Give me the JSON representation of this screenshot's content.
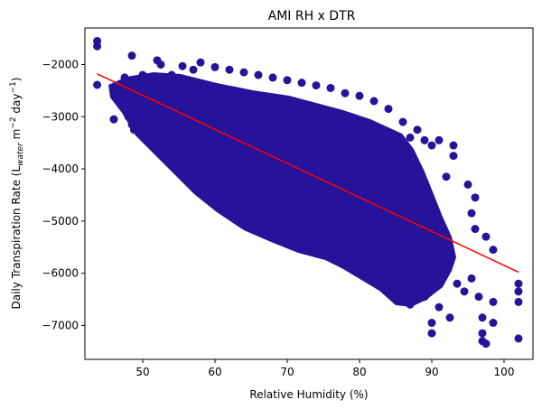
{
  "chart_data": {
    "type": "scatter",
    "title": "AMI RH x DTR",
    "xlabel": "Relative Humidity (%)",
    "ylabel_parts": {
      "pre": "Daily Transpiration Rate (L",
      "sub": "water",
      "mid": " m",
      "sup1": "−2",
      "mid2": " day",
      "sup2": "−1",
      "post": ")"
    },
    "xlim": [
      42,
      104
    ],
    "ylim": [
      -7650,
      -1300
    ],
    "x_ticks": [
      50,
      60,
      70,
      80,
      90,
      100
    ],
    "x_tick_labels": [
      "50",
      "60",
      "70",
      "80",
      "90",
      "100"
    ],
    "y_ticks": [
      -7000,
      -6000,
      -5000,
      -4000,
      -3000,
      -2000
    ],
    "y_tick_labels": [
      "−7000",
      "−6000",
      "−5000",
      "−4000",
      "−3000",
      "−2000"
    ],
    "grid": false,
    "series": [
      {
        "kind": "scatter",
        "color": "#26139a",
        "points": [
          [
            43.7,
            -1550
          ],
          [
            43.7,
            -1650
          ],
          [
            43.7,
            -2390
          ],
          [
            46.0,
            -3050
          ],
          [
            47.5,
            -2250
          ],
          [
            48.5,
            -1830
          ],
          [
            48.0,
            -3000
          ],
          [
            48.5,
            -3150
          ],
          [
            48.8,
            -3250
          ],
          [
            50.0,
            -2200
          ],
          [
            50.5,
            -2350
          ],
          [
            52.0,
            -1920
          ],
          [
            52.5,
            -2000
          ],
          [
            55.5,
            -2030
          ],
          [
            58.0,
            -1960
          ],
          [
            56.0,
            -3900
          ],
          [
            57.0,
            -4100
          ],
          [
            58.0,
            -4300
          ],
          [
            61.0,
            -4600
          ],
          [
            62.0,
            -4450
          ],
          [
            64.0,
            -4700
          ],
          [
            66.0,
            -4900
          ],
          [
            68.0,
            -5000
          ],
          [
            70.0,
            -5250
          ],
          [
            72.0,
            -5400
          ],
          [
            74.0,
            -5350
          ],
          [
            76.0,
            -5600
          ],
          [
            78.0,
            -5800
          ],
          [
            80.0,
            -5900
          ],
          [
            82.0,
            -6100
          ],
          [
            84.0,
            -6300
          ],
          [
            86.0,
            -6500
          ],
          [
            87.0,
            -6600
          ],
          [
            88.0,
            -6500
          ],
          [
            89.0,
            -6450
          ],
          [
            90.0,
            -6950
          ],
          [
            90.0,
            -7150
          ],
          [
            91.0,
            -6650
          ],
          [
            92.5,
            -6850
          ],
          [
            93.5,
            -6200
          ],
          [
            94.5,
            -6350
          ],
          [
            95.5,
            -6100
          ],
          [
            96.5,
            -6450
          ],
          [
            97.0,
            -6850
          ],
          [
            97.0,
            -7150
          ],
          [
            97.0,
            -7300
          ],
          [
            97.5,
            -7350
          ],
          [
            98.5,
            -6550
          ],
          [
            98.5,
            -6950
          ],
          [
            102.0,
            -6200
          ],
          [
            102.0,
            -6350
          ],
          [
            102.0,
            -6550
          ],
          [
            102.0,
            -7250
          ],
          [
            93.0,
            -3550
          ],
          [
            93.0,
            -3750
          ],
          [
            95.0,
            -4300
          ],
          [
            96.0,
            -4550
          ],
          [
            97.5,
            -5300
          ],
          [
            98.5,
            -5550
          ],
          [
            95.5,
            -4850
          ],
          [
            96.0,
            -5150
          ],
          [
            92.0,
            -4150
          ],
          [
            91.0,
            -3450
          ],
          [
            90.0,
            -3550
          ],
          [
            88.0,
            -3250
          ],
          [
            89.0,
            -3450
          ],
          [
            86.0,
            -3100
          ],
          [
            87.0,
            -3400
          ],
          [
            84.0,
            -2850
          ],
          [
            82.0,
            -2700
          ],
          [
            80.0,
            -2600
          ],
          [
            78.0,
            -2550
          ],
          [
            76.0,
            -2450
          ],
          [
            74.0,
            -2400
          ],
          [
            72.0,
            -2350
          ],
          [
            70.0,
            -2300
          ],
          [
            68.0,
            -2250
          ],
          [
            66.0,
            -2200
          ],
          [
            64.0,
            -2150
          ],
          [
            62.0,
            -2100
          ],
          [
            60.0,
            -2050
          ],
          [
            57.0,
            -2100
          ],
          [
            54.0,
            -2200
          ],
          [
            51.0,
            -2500
          ],
          [
            49.0,
            -2700
          ],
          [
            47.0,
            -2600
          ],
          [
            46.0,
            -2550
          ]
        ]
      },
      {
        "kind": "line",
        "color": "#ff0000",
        "x": [
          43.7,
          102.0
        ],
        "y": [
          -2180,
          -5980
        ]
      }
    ]
  }
}
